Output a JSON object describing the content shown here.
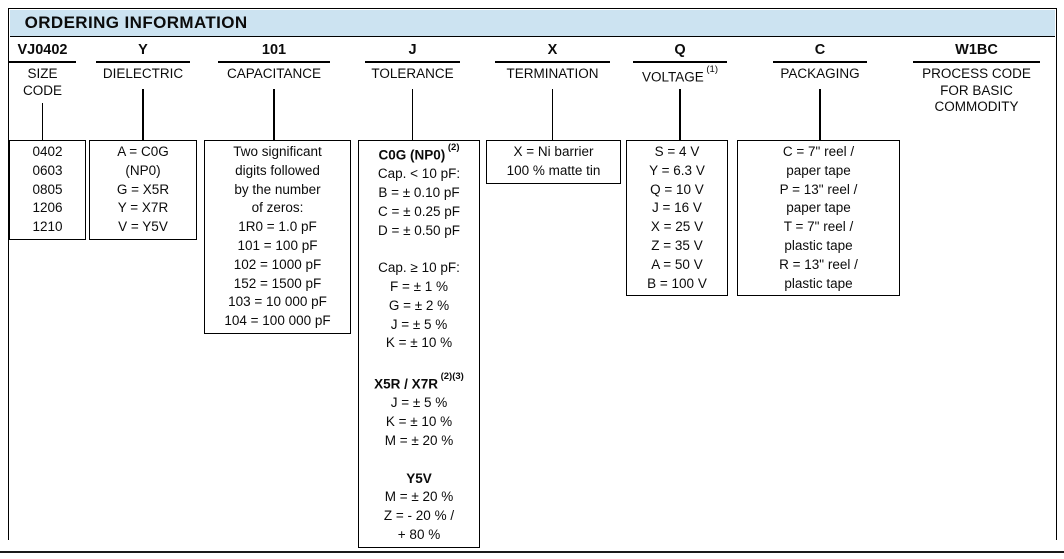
{
  "header": {
    "title": "ORDERING INFORMATION"
  },
  "colors": {
    "header_bg": "#cce3f1",
    "border": "#000000"
  },
  "example_part_number": "VJ0402 Y 101 J X Q C W1BC",
  "columns": [
    {
      "id": "size-code",
      "code": "VJ0402",
      "label_lines": [
        "SIZE",
        "CODE"
      ],
      "box_lines": [
        {
          "text": "0402"
        },
        {
          "text": "0603"
        },
        {
          "text": "0805"
        },
        {
          "text": "1206"
        },
        {
          "text": "1210"
        }
      ]
    },
    {
      "id": "dielectric",
      "code": "Y",
      "label_lines": [
        "DIELECTRIC"
      ],
      "box_lines": [
        {
          "text": "A = C0G"
        },
        {
          "text": "(NP0)"
        },
        {
          "text": "G = X5R"
        },
        {
          "text": "Y = X7R"
        },
        {
          "text": "V = Y5V"
        }
      ]
    },
    {
      "id": "capacitance",
      "code": "101",
      "label_lines": [
        "CAPACITANCE"
      ],
      "box_lines": [
        {
          "text": "Two significant"
        },
        {
          "text": "digits followed"
        },
        {
          "text": "by the number"
        },
        {
          "text": "of zeros:"
        },
        {
          "text": "1R0 = 1.0 pF"
        },
        {
          "text": "101 = 100 pF"
        },
        {
          "text": "102 = 1000 pF"
        },
        {
          "text": "152 = 1500 pF"
        },
        {
          "text": "103 = 10 000 pF"
        },
        {
          "text": "104 = 100 000 pF"
        }
      ]
    },
    {
      "id": "tolerance",
      "code": "J",
      "label_lines": [
        "TOLERANCE"
      ],
      "box_lines": [
        {
          "text": "C0G (NP0)",
          "bold": true,
          "sup": "(2)"
        },
        {
          "text": "Cap. < 10 pF:"
        },
        {
          "text": "B = ± 0.10 pF"
        },
        {
          "text": "C = ± 0.25 pF"
        },
        {
          "text": "D = ± 0.50 pF"
        },
        {
          "text": ""
        },
        {
          "text": "Cap. ≥ 10 pF:"
        },
        {
          "text": "F = ± 1 %"
        },
        {
          "text": "G = ± 2 %"
        },
        {
          "text": "J = ± 5 %"
        },
        {
          "text": "K = ± 10 %"
        },
        {
          "text": ""
        },
        {
          "text": "X5R / X7R",
          "bold": true,
          "sup": "(2)(3)"
        },
        {
          "text": "J = ± 5 %"
        },
        {
          "text": "K = ± 10 %"
        },
        {
          "text": "M = ± 20 %"
        },
        {
          "text": ""
        },
        {
          "text": "Y5V",
          "bold": true
        },
        {
          "text": "M = ± 20 %"
        },
        {
          "text": "Z = - 20 % /"
        },
        {
          "text": "+ 80 %"
        }
      ]
    },
    {
      "id": "termination",
      "code": "X",
      "label_lines": [
        "TERMINATION"
      ],
      "box_lines": [
        {
          "text": "X = Ni barrier"
        },
        {
          "text": "100 % matte tin"
        }
      ]
    },
    {
      "id": "voltage",
      "code": "Q",
      "label_lines": [
        "VOLTAGE"
      ],
      "label_sup": "(1)",
      "box_lines": [
        {
          "text": "S = 4 V"
        },
        {
          "text": "Y = 6.3 V"
        },
        {
          "text": "Q = 10 V"
        },
        {
          "text": "J = 16 V"
        },
        {
          "text": "X = 25 V"
        },
        {
          "text": "Z = 35 V"
        },
        {
          "text": "A = 50 V"
        },
        {
          "text": "B = 100 V"
        }
      ]
    },
    {
      "id": "packaging",
      "code": "C",
      "label_lines": [
        "PACKAGING"
      ],
      "box_lines": [
        {
          "text": "C = 7\" reel /"
        },
        {
          "text": "paper tape"
        },
        {
          "text": "P = 13\" reel /"
        },
        {
          "text": "paper tape"
        },
        {
          "text": "T = 7\" reel /"
        },
        {
          "text": "plastic tape"
        },
        {
          "text": "R = 13\" reel /"
        },
        {
          "text": "plastic tape"
        }
      ]
    },
    {
      "id": "process-code",
      "code": "W1BC",
      "label_lines": [
        "PROCESS CODE",
        "FOR BASIC",
        "COMMODITY"
      ]
    }
  ]
}
